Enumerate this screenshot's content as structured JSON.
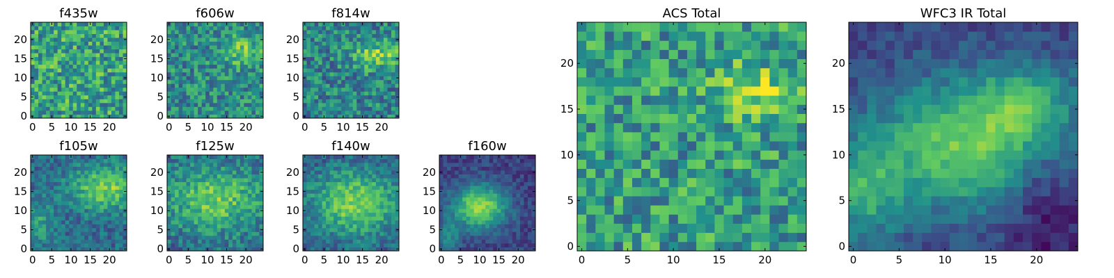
{
  "chart_data": [
    {
      "type": "heatmap",
      "title": "f435w",
      "colormap": "viridis",
      "xlim": [
        -0.5,
        24.5
      ],
      "ylim": [
        -0.5,
        24.5
      ],
      "x_ticks": [
        "0",
        "5",
        "10",
        "15",
        "20"
      ],
      "y_ticks": [
        "0",
        "5",
        "10",
        "15",
        "20"
      ],
      "grid": false,
      "legend": "none"
    },
    {
      "type": "heatmap",
      "title": "f606w",
      "colormap": "viridis",
      "xlim": [
        -0.5,
        24.5
      ],
      "ylim": [
        -0.5,
        24.5
      ],
      "x_ticks": [
        "0",
        "5",
        "10",
        "15",
        "20"
      ],
      "y_ticks": [
        "0",
        "5",
        "10",
        "15",
        "20"
      ],
      "grid": false,
      "legend": "none"
    },
    {
      "type": "heatmap",
      "title": "f814w",
      "colormap": "viridis",
      "xlim": [
        -0.5,
        24.5
      ],
      "ylim": [
        -0.5,
        24.5
      ],
      "x_ticks": [
        "0",
        "5",
        "10",
        "15",
        "20"
      ],
      "y_ticks": [
        "0",
        "5",
        "10",
        "15",
        "20"
      ],
      "grid": false,
      "legend": "none"
    },
    {
      "type": "heatmap",
      "title": "f105w",
      "colormap": "viridis",
      "xlim": [
        -0.5,
        24.5
      ],
      "ylim": [
        -0.5,
        24.5
      ],
      "x_ticks": [
        "0",
        "5",
        "10",
        "15",
        "20"
      ],
      "y_ticks": [
        "0",
        "5",
        "10",
        "15",
        "20"
      ],
      "grid": false,
      "legend": "none"
    },
    {
      "type": "heatmap",
      "title": "f125w",
      "colormap": "viridis",
      "xlim": [
        -0.5,
        24.5
      ],
      "ylim": [
        -0.5,
        24.5
      ],
      "x_ticks": [
        "0",
        "5",
        "10",
        "15",
        "20"
      ],
      "y_ticks": [
        "0",
        "5",
        "10",
        "15",
        "20"
      ],
      "grid": false,
      "legend": "none"
    },
    {
      "type": "heatmap",
      "title": "f140w",
      "colormap": "viridis",
      "xlim": [
        -0.5,
        24.5
      ],
      "ylim": [
        -0.5,
        24.5
      ],
      "x_ticks": [
        "0",
        "5",
        "10",
        "15",
        "20"
      ],
      "y_ticks": [
        "0",
        "5",
        "10",
        "15",
        "20"
      ],
      "grid": false,
      "legend": "none"
    },
    {
      "type": "heatmap",
      "title": "f160w",
      "colormap": "viridis",
      "xlim": [
        -0.5,
        24.5
      ],
      "ylim": [
        -0.5,
        24.5
      ],
      "x_ticks": [
        "0",
        "5",
        "10",
        "15",
        "20"
      ],
      "y_ticks": [
        "0",
        "5",
        "10",
        "15",
        "20"
      ],
      "grid": false,
      "legend": "none"
    },
    {
      "type": "heatmap",
      "title": "ACS Total",
      "colormap": "viridis",
      "xlim": [
        -0.5,
        24.5
      ],
      "ylim": [
        -0.5,
        24.5
      ],
      "x_ticks": [
        "0",
        "5",
        "10",
        "15",
        "20"
      ],
      "y_ticks": [
        "0",
        "5",
        "10",
        "15",
        "20"
      ],
      "grid": false,
      "legend": "none"
    },
    {
      "type": "heatmap",
      "title": "WFC3 IR Total",
      "colormap": "viridis",
      "xlim": [
        -0.5,
        24.5
      ],
      "ylim": [
        -0.5,
        24.5
      ],
      "x_ticks": [
        "0",
        "5",
        "10",
        "15",
        "20"
      ],
      "y_ticks": [
        "0",
        "5",
        "10",
        "15",
        "20"
      ],
      "grid": false,
      "legend": "none"
    }
  ]
}
